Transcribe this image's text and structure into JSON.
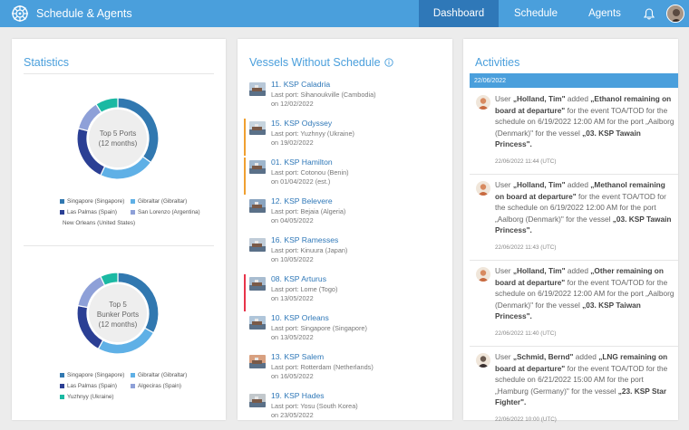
{
  "app": {
    "title": "Schedule & Agents"
  },
  "nav": {
    "tabs": [
      "Dashboard",
      "Schedule",
      "Agents"
    ],
    "active": "Dashboard"
  },
  "colors": {
    "accent": "#4a9fdc",
    "accent_dark": "#2f78b8",
    "orange": "#f0a030",
    "red": "#e8344a"
  },
  "statistics": {
    "title": "Statistics",
    "ports_chart": {
      "center": "Top 5 Ports\n(12 months)",
      "legend": [
        "Singapore (Singapore)",
        "Gibraltar (Gibraltar)",
        "Las Palmas (Spain)",
        "San Lorenzo (Argentina)",
        "New Orleans (United States)"
      ],
      "colors": [
        "#3178b0",
        "#5fb0e6",
        "#2b3f94",
        "#8ea0d8",
        "#1bb9a3"
      ],
      "values": [
        35,
        22,
        22,
        12,
        9
      ]
    },
    "bunker_chart": {
      "center": "Top 5\nBunker Ports\n(12 months)",
      "legend": [
        "Singapore (Singapore)",
        "Gibraltar (Gibraltar)",
        "Las Palmas (Spain)",
        "Algeciras (Spain)",
        "Yuzhnyy (Ukraine)"
      ],
      "colors": [
        "#3178b0",
        "#5fb0e6",
        "#2b3f94",
        "#8ea0d8",
        "#1bb9a3"
      ],
      "values": [
        33,
        25,
        20,
        15,
        7
      ]
    }
  },
  "vessels": {
    "title": "Vessels Without Schedule",
    "items": [
      {
        "name": "11. KSP Caladria",
        "port": "Last port: Sihanoukville (Cambodia)",
        "date": "on 12/02/2022",
        "flag": ""
      },
      {
        "name": "15. KSP Odyssey",
        "port": "Last port: Yuzhnyy (Ukraine)",
        "date": "on 19/02/2022",
        "flag": "orange"
      },
      {
        "name": "01. KSP Hamilton",
        "port": "Last port: Cotonou (Benin)",
        "date": "on 01/04/2022 (est.)",
        "flag": "orange"
      },
      {
        "name": "12. KSP Belevere",
        "port": "Last port: Bejaia (Algeria)",
        "date": "on 04/05/2022",
        "flag": ""
      },
      {
        "name": "16. KSP Ramesses",
        "port": "Last port: Kinuura (Japan)",
        "date": "on 10/05/2022",
        "flag": ""
      },
      {
        "name": "08. KSP Arturus",
        "port": "Last port: Lome (Togo)",
        "date": "on 13/05/2022",
        "flag": "red"
      },
      {
        "name": "10. KSP Orleans",
        "port": "Last port: Singapore (Singapore)",
        "date": "on 13/05/2022",
        "flag": ""
      },
      {
        "name": "13. KSP Salem",
        "port": "Last port: Rotterdam (Netherlands)",
        "date": "on 16/05/2022",
        "flag": ""
      },
      {
        "name": "19. KSP Hades",
        "port": "Last port: Yosu (South Korea)",
        "date": "on 23/05/2022",
        "flag": ""
      }
    ]
  },
  "activities": {
    "title": "Activities",
    "date": "22/06/2022",
    "items": [
      {
        "user": "„Holland, Tim\"",
        "item": "„Ethanol remaining on board at departure\"",
        "schedule": "6/19/2022 12:00 AM",
        "port": "„Aalborg (Denmark)\"",
        "vessel": "„03. KSP Tawain Princess\".",
        "time": "22/06/2022 11:44 (UTC)"
      },
      {
        "user": "„Holland, Tim\"",
        "item": "„Methanol remaining on board at departure\"",
        "schedule": "6/19/2022 12:00 AM",
        "port": "„Aalborg (Denmark)\"",
        "vessel": "„03. KSP Tawain Princess\".",
        "time": "22/06/2022 11:43 (UTC)"
      },
      {
        "user": "„Holland, Tim\"",
        "item": "„Other remaining on board at departure\"",
        "schedule": "6/19/2022 12:00 AM",
        "port": "„Aalborg (Denmark)\"",
        "vessel": "„03. KSP Taiwan Princess\".",
        "time": "22/06/2022 11:40 (UTC)"
      },
      {
        "user": "„Schmid, Bernd\"",
        "item": "„LNG remaining on board at departure\"",
        "schedule": "6/21/2022 15:00 AM",
        "port": "„Hamburg (Germany)\"",
        "vessel": "„23. KSP Star Fighter\".",
        "time": "22/06/2022 10:00 (UTC)"
      }
    ],
    "words": {
      "user": "User",
      "added": "added",
      "for_event": "for the event TOA/TOD for the schedule on",
      "for_port": "for the port",
      "for_vessel": "for the vessel"
    }
  }
}
